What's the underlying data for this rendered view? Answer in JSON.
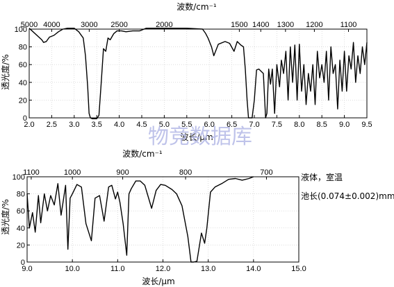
{
  "watermark": "物竞数据库",
  "colors": {
    "line": "#000000",
    "grid": "#c8c8c8",
    "watermark": "#b9bde8"
  },
  "chart_data": [
    {
      "type": "line",
      "title": "",
      "top_axis_label": "波数/cm⁻¹",
      "top_ticks": [
        {
          "label": "5000",
          "at": 2.0
        },
        {
          "label": "4000",
          "at": 2.5
        },
        {
          "label": "3000",
          "at": 3.3333
        },
        {
          "label": "2500",
          "at": 4.0
        },
        {
          "label": "2000",
          "at": 5.0
        },
        {
          "label": "1500",
          "at": 6.6667
        },
        {
          "label": "1400",
          "at": 7.1429
        },
        {
          "label": "1300",
          "at": 7.6923
        },
        {
          "label": "1200",
          "at": 8.3333
        },
        {
          "label": "1100",
          "at": 9.0909
        }
      ],
      "xlabel": "波长/μm",
      "ylabel": "透光度/%",
      "xlim": [
        2.0,
        9.5
      ],
      "ylim": [
        0,
        100
      ],
      "x_ticks": [
        {
          "label": "2.0",
          "at": 2.0
        },
        {
          "label": "2.5",
          "at": 2.5
        },
        {
          "label": "3.0",
          "at": 3.0
        },
        {
          "label": "3.5",
          "at": 3.5
        },
        {
          "label": "4.0",
          "at": 4.0
        },
        {
          "label": "4.5",
          "at": 4.5
        },
        {
          "label": "5.0",
          "at": 5.0
        },
        {
          "label": "5.5",
          "at": 5.5
        },
        {
          "label": "6.0",
          "at": 6.0
        },
        {
          "label": "6.5",
          "at": 6.5
        },
        {
          "label": "7.0",
          "at": 7.0
        },
        {
          "label": "7.5",
          "at": 7.5
        },
        {
          "label": "8.0",
          "at": 8.0
        },
        {
          "label": "8.5",
          "at": 8.5
        },
        {
          "label": "9.0",
          "at": 9.0
        },
        {
          "label": "9.5",
          "at": 9.5
        }
      ],
      "y_ticks": [
        {
          "label": "0",
          "at": 0
        },
        {
          "label": "20",
          "at": 20
        },
        {
          "label": "40",
          "at": 40
        },
        {
          "label": "60",
          "at": 60
        },
        {
          "label": "80",
          "at": 80
        },
        {
          "label": "100",
          "at": 100
        }
      ],
      "grid": true,
      "annotations": [],
      "series": [
        {
          "x": [
            2.0,
            2.28,
            2.32,
            2.38,
            2.45,
            2.55,
            2.65,
            2.75,
            2.85,
            3.0,
            3.1,
            3.2,
            3.25,
            3.3,
            3.33,
            3.36,
            3.4,
            3.45,
            3.5,
            3.55,
            3.6,
            3.65,
            3.7,
            3.75,
            3.8,
            3.88,
            3.95,
            4.05,
            4.15,
            4.3,
            4.45,
            4.6,
            4.8,
            5.0,
            5.5,
            5.85,
            5.92,
            5.97,
            6.05,
            6.1,
            6.2,
            6.35,
            6.45,
            6.55,
            6.62,
            6.7,
            6.76,
            6.8,
            6.84,
            6.87,
            6.9,
            6.95,
            7.0,
            7.05,
            7.1,
            7.2,
            7.25,
            7.28,
            7.32,
            7.36,
            7.4,
            7.45,
            7.5,
            7.56,
            7.6,
            7.65,
            7.7,
            7.75,
            7.8,
            7.85,
            7.9,
            7.95,
            8.0,
            8.05,
            8.1,
            8.15,
            8.2,
            8.25,
            8.3,
            8.35,
            8.4,
            8.45,
            8.5,
            8.55,
            8.6,
            8.65,
            8.7,
            8.75,
            8.8,
            8.85,
            8.9,
            8.95,
            9.0,
            9.05,
            9.1,
            9.15,
            9.2,
            9.25,
            9.3,
            9.35,
            9.4,
            9.45,
            9.5
          ],
          "y": [
            101,
            88,
            85,
            86,
            91,
            93,
            97,
            100,
            101,
            101,
            97,
            90,
            70,
            35,
            5,
            0,
            -1,
            -1,
            -1,
            3,
            40,
            78,
            75,
            90,
            88,
            95,
            98,
            98,
            97,
            98,
            98,
            101,
            101,
            101,
            101,
            100,
            95,
            90,
            80,
            70,
            83,
            86,
            84,
            75,
            86,
            82,
            80,
            55,
            20,
            0,
            0,
            0,
            20,
            54,
            55,
            50,
            0,
            5,
            55,
            38,
            55,
            5,
            60,
            35,
            65,
            50,
            75,
            20,
            80,
            40,
            82,
            20,
            83,
            30,
            60,
            15,
            50,
            30,
            60,
            15,
            75,
            45,
            60,
            40,
            75,
            20,
            80,
            50,
            60,
            10,
            65,
            30,
            75,
            30,
            70,
            55,
            85,
            40,
            70,
            50,
            80,
            60,
            85
          ]
        }
      ]
    },
    {
      "type": "line",
      "title": "",
      "top_axis_label": "波数/cm⁻¹",
      "top_ticks": [
        {
          "label": "1100",
          "at": 9.0909
        },
        {
          "label": "1000",
          "at": 10.0
        },
        {
          "label": "900",
          "at": 11.1111
        },
        {
          "label": "800",
          "at": 12.5
        },
        {
          "label": "700",
          "at": 14.2857
        }
      ],
      "xlabel": "波长/μm",
      "ylabel": "透光度/%",
      "xlim": [
        9.0,
        15.0
      ],
      "ylim": [
        0,
        100
      ],
      "x_ticks": [
        {
          "label": "9.0",
          "at": 9.0
        },
        {
          "label": "10.0",
          "at": 10.0
        },
        {
          "label": "11.0",
          "at": 11.0
        },
        {
          "label": "12.0",
          "at": 12.0
        },
        {
          "label": "13.0",
          "at": 13.0
        },
        {
          "label": "14.0",
          "at": 14.0
        },
        {
          "label": "15.0",
          "at": 15.0
        }
      ],
      "y_ticks": [
        {
          "label": "0",
          "at": 0
        },
        {
          "label": "20",
          "at": 20
        },
        {
          "label": "40",
          "at": 40
        },
        {
          "label": "60",
          "at": 60
        },
        {
          "label": "80",
          "at": 80
        },
        {
          "label": "100",
          "at": 100
        }
      ],
      "grid": true,
      "annotations": [
        "液体，室温",
        "池长(0.074±0.002)mm"
      ],
      "series": [
        {
          "x": [
            9.0,
            9.05,
            9.12,
            9.18,
            9.25,
            9.3,
            9.38,
            9.45,
            9.52,
            9.6,
            9.68,
            9.75,
            9.85,
            9.9,
            9.95,
            10.0,
            10.1,
            10.2,
            10.3,
            10.42,
            10.5,
            10.6,
            10.7,
            10.8,
            10.87,
            10.95,
            11.0,
            11.05,
            11.12,
            11.2,
            11.25,
            11.3,
            11.4,
            11.5,
            11.6,
            11.75,
            11.85,
            11.95,
            12.05,
            12.2,
            12.3,
            12.42,
            12.55,
            12.62,
            12.68,
            12.75,
            12.85,
            12.92,
            12.97,
            13.05,
            13.15,
            13.3,
            13.45,
            13.6,
            13.75,
            13.9,
            14.0
          ],
          "y": [
            80,
            40,
            58,
            35,
            78,
            46,
            80,
            60,
            78,
            67,
            92,
            55,
            90,
            15,
            75,
            80,
            91,
            88,
            45,
            25,
            75,
            78,
            48,
            88,
            90,
            74,
            82,
            70,
            45,
            8,
            80,
            86,
            95,
            95,
            90,
            63,
            84,
            91,
            90,
            85,
            80,
            66,
            30,
            0,
            0,
            1,
            34,
            22,
            40,
            82,
            88,
            92,
            97,
            98,
            96,
            98,
            100
          ]
        }
      ]
    }
  ]
}
